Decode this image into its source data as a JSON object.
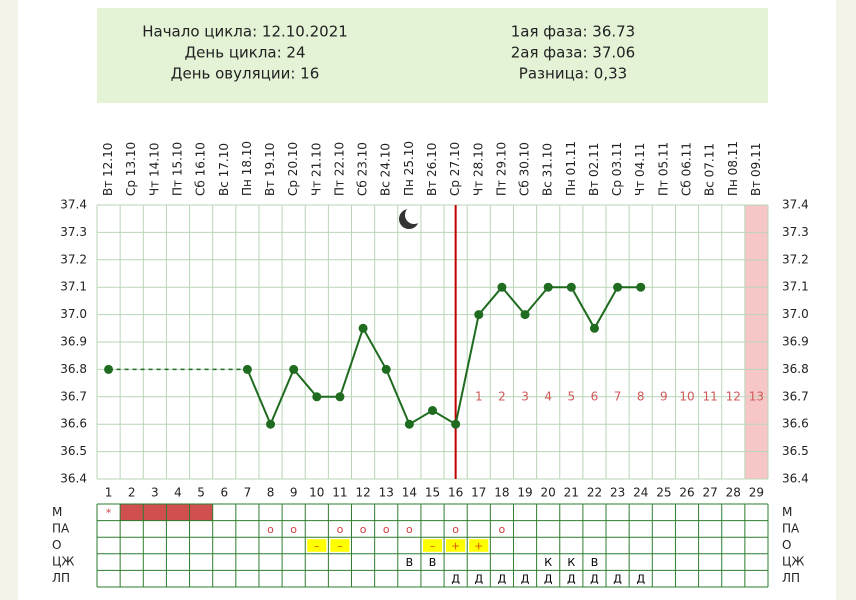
{
  "header": {
    "left": [
      "Начало цикла: 12.10.2021",
      "День цикла: 24",
      "День овуляции: 16"
    ],
    "right": [
      "1ая фаза: 36.73",
      "2ая фаза: 37.06",
      "Разница: 0,33"
    ]
  },
  "chart_data": {
    "type": "line",
    "categories": [
      1,
      2,
      3,
      4,
      5,
      6,
      7,
      8,
      9,
      10,
      11,
      12,
      13,
      14,
      15,
      16,
      17,
      18,
      19,
      20,
      21,
      22,
      23,
      24,
      25,
      26,
      27,
      28,
      29
    ],
    "dates": [
      "Вт 12.10",
      "Ср 13.10",
      "Чт 14.10",
      "Пт 15.10",
      "Сб 16.10",
      "Вс 17.10",
      "Пн 18.10",
      "Вт 19.10",
      "Ср 20.10",
      "Чт 21.10",
      "Пт 22.10",
      "Сб 23.10",
      "Вс 24.10",
      "Пн 25.10",
      "Вт 26.10",
      "Ср 27.10",
      "Чт 28.10",
      "Пт 29.10",
      "Сб 30.10",
      "Вс 31.10",
      "Пн 01.11",
      "Вт 02.11",
      "Ср 03.11",
      "Чт 04.11",
      "Пт 05.11",
      "Сб 06.11",
      "Вс 07.11",
      "Пн 08.11",
      "Вт 09.11"
    ],
    "series": [
      {
        "color": "#1f6b1f",
        "values": [
          36.8,
          null,
          null,
          null,
          null,
          null,
          36.8,
          36.6,
          36.8,
          36.7,
          36.7,
          36.95,
          36.8,
          36.6,
          36.65,
          36.6,
          37.0,
          37.1,
          37.0,
          37.1,
          37.1,
          36.95,
          37.1,
          37.1,
          null,
          null,
          null,
          null,
          null
        ]
      }
    ],
    "ylim": [
      36.4,
      37.4
    ],
    "yticks": [
      36.4,
      36.5,
      36.6,
      36.7,
      36.8,
      36.9,
      {
        "value": 37,
        "label": "37.0"
      },
      37.1,
      37.2,
      37.3,
      37.4
    ],
    "grid": true,
    "ovulation_day": 16,
    "ovulation_color": "#c00000",
    "phase2_labels": [
      1,
      2,
      3,
      4,
      5,
      6,
      7,
      8,
      9,
      10,
      11,
      12,
      13
    ],
    "phase2_color": "#d05a5a",
    "highlight_day": 29,
    "highlight_color": "#f7c6c6"
  },
  "table": {
    "rows": [
      {
        "label": "М",
        "text_color": "#d04040",
        "marks": [
          {
            "day": 1,
            "text": "*"
          }
        ],
        "filled_days": [
          2,
          3,
          4,
          5
        ],
        "fill_color": "#d05050"
      },
      {
        "label": "ПА",
        "text_color": "#d04040",
        "marks": [
          {
            "day": 8,
            "text": "о"
          },
          {
            "day": 9,
            "text": "о"
          },
          {
            "day": 11,
            "text": "о"
          },
          {
            "day": 12,
            "text": "о"
          },
          {
            "day": 13,
            "text": "о"
          },
          {
            "day": 14,
            "text": "о"
          },
          {
            "day": 16,
            "text": "о"
          },
          {
            "day": 18,
            "text": "о"
          }
        ]
      },
      {
        "label": "О",
        "text_color": "#e05000",
        "cell_color": "#ffff00",
        "marks": [
          {
            "day": 10,
            "text": "–"
          },
          {
            "day": 11,
            "text": "–"
          },
          {
            "day": 15,
            "text": "–"
          },
          {
            "day": 16,
            "text": "+"
          },
          {
            "day": 17,
            "text": "+"
          }
        ]
      },
      {
        "label": "ЦЖ",
        "text_color": "#000000",
        "marks": [
          {
            "day": 14,
            "text": "В"
          },
          {
            "day": 15,
            "text": "В"
          },
          {
            "day": 20,
            "text": "К"
          },
          {
            "day": 21,
            "text": "К"
          },
          {
            "day": 22,
            "text": "В"
          }
        ]
      },
      {
        "label": "ЛП",
        "text_color": "#000000",
        "marks": [
          {
            "day": 16,
            "text": "Д"
          },
          {
            "day": 17,
            "text": "Д"
          },
          {
            "day": 18,
            "text": "Д"
          },
          {
            "day": 19,
            "text": "Д"
          },
          {
            "day": 20,
            "text": "Д"
          },
          {
            "day": 21,
            "text": "Д"
          },
          {
            "day": 22,
            "text": "Д"
          },
          {
            "day": 23,
            "text": "Д"
          },
          {
            "day": 24,
            "text": "Д"
          }
        ]
      }
    ]
  }
}
